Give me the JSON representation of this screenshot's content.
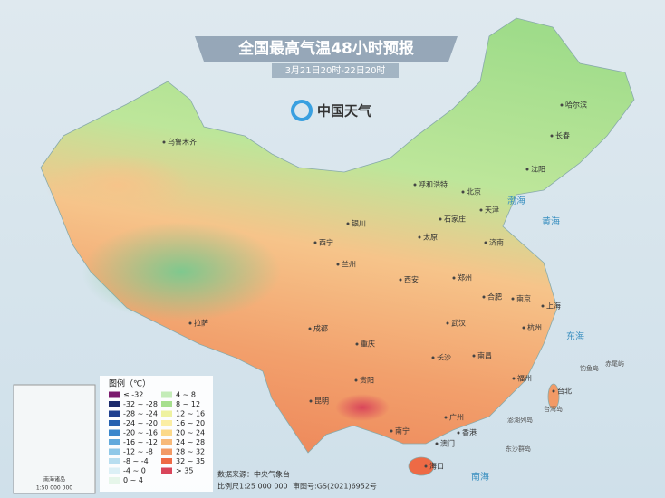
{
  "header": {
    "title": "全国最高气温48小时预报",
    "subtitle": "3月21日20时-22日20时",
    "logo": "中国天气"
  },
  "cities": [
    "乌鲁木齐",
    "哈尔滨",
    "长春",
    "沈阳",
    "呼和浩特",
    "北京",
    "天津",
    "石家庄",
    "太原",
    "济南",
    "银川",
    "西宁",
    "兰州",
    "郑州",
    "西安",
    "合肥",
    "南京",
    "上海",
    "成都",
    "武汉",
    "杭州",
    "拉萨",
    "重庆",
    "长沙",
    "南昌",
    "福州",
    "贵阳",
    "台北",
    "昆明",
    "广州",
    "南宁",
    "香港",
    "澳门",
    "海口"
  ],
  "seas": [
    "渤海",
    "黄海",
    "东海",
    "南海"
  ],
  "islands": [
    "钓鱼岛",
    "赤尾屿",
    "台湾岛",
    "澎湖列岛",
    "东沙群岛"
  ],
  "legend": {
    "title": "图例（℃）",
    "items": [
      {
        "label": "≤ -32",
        "color": "#7b1a6e"
      },
      {
        "label": "-32 ~ -28",
        "color": "#1b2a6b"
      },
      {
        "label": "-28 ~ -24",
        "color": "#1f3f8f"
      },
      {
        "label": "-24 ~ -20",
        "color": "#2460b0"
      },
      {
        "label": "-20 ~ -16",
        "color": "#3a86cc"
      },
      {
        "label": "-16 ~ -12",
        "color": "#62a9dc"
      },
      {
        "label": "-12 ~ -8",
        "color": "#8fc8e8"
      },
      {
        "label": "-8 ~ -4",
        "color": "#b8def0"
      },
      {
        "label": "-4 ~ 0",
        "color": "#dcf0f6"
      },
      {
        "label": "0 ~ 4",
        "color": "#e6f6ea"
      },
      {
        "label": "4 ~ 8",
        "color": "#c4ecb8"
      },
      {
        "label": "8 ~ 12",
        "color": "#a6df8e"
      },
      {
        "label": "12 ~ 16",
        "color": "#eef2a0"
      },
      {
        "label": "16 ~ 20",
        "color": "#fbeea4"
      },
      {
        "label": "20 ~ 24",
        "color": "#fbd98a"
      },
      {
        "label": "24 ~ 28",
        "color": "#f7b97a"
      },
      {
        "label": "28 ~ 32",
        "color": "#f29a66"
      },
      {
        "label": "32 ~ 35",
        "color": "#ee6a45"
      },
      {
        "label": "> 35",
        "color": "#d9455a"
      }
    ]
  },
  "footer": {
    "source": "数据来源：中央气象台",
    "scale": "比例尺1:25 000 000",
    "review": "审图号:GS(2021)6952号"
  },
  "inset": {
    "label": "南海诸岛",
    "scale": "1:50 000 000"
  }
}
